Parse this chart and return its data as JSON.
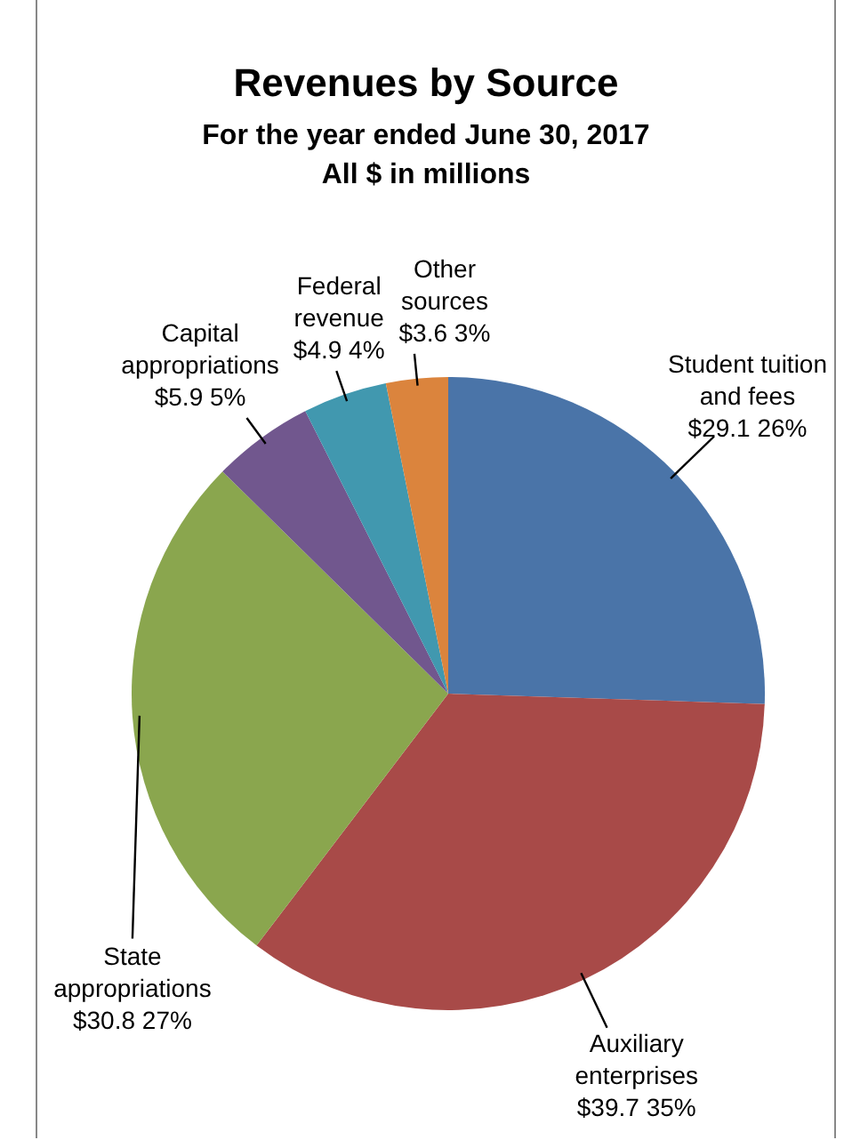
{
  "chart_data": {
    "type": "pie",
    "title": "Revenues by Source",
    "subtitle": "For the year ended June 30, 2017\nAll $ in millions",
    "categories": [
      "Student tuition and fees",
      "Auxiliary enterprises",
      "State appropriations",
      "Capital appropriations",
      "Federal revenue",
      "Other sources"
    ],
    "values": [
      29.1,
      39.7,
      30.8,
      5.9,
      4.9,
      3.6
    ],
    "value_labels": [
      "$29.1 26%",
      "$39.7 35%",
      "$30.8 27%",
      "$5.9 5%",
      "$4.9 4%",
      "$3.6 3%"
    ],
    "colors": [
      "#4a74a8",
      "#a84a48",
      "#8aa64e",
      "#71578e",
      "#4198af",
      "#db843d"
    ],
    "legend": false
  }
}
